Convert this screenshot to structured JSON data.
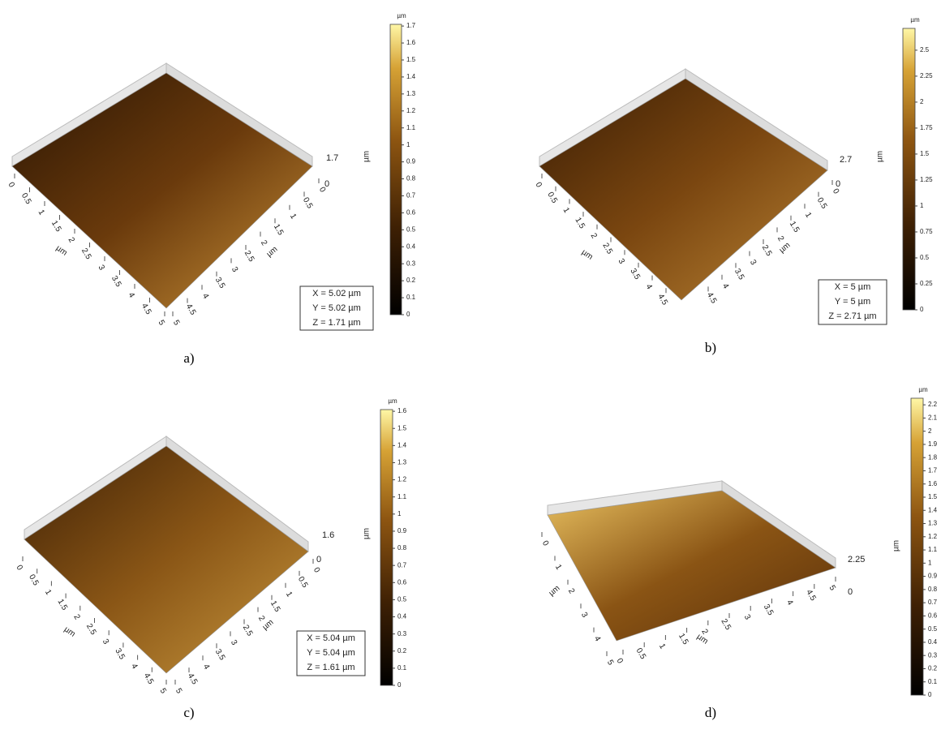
{
  "chart_data": [
    {
      "type": "surface",
      "caption": "a)",
      "xlabel": "µm",
      "ylabel": "µm",
      "zlabel": "µm",
      "xlim": [
        0,
        5
      ],
      "xticks": [
        0,
        0.5,
        1,
        1.5,
        2,
        2.5,
        3,
        3.5,
        4,
        4.5,
        5
      ],
      "ylim": [
        0,
        5
      ],
      "yticks": [
        0,
        0.5,
        1,
        1.5,
        2,
        2.5,
        3,
        3.5,
        4,
        4.5,
        5
      ],
      "zticks": [
        1.7,
        0
      ],
      "info": [
        "X = 5.02 µm",
        "Y = 5.02 µm",
        "Z = 1.71 µm"
      ],
      "colorbar": {
        "label": "µm",
        "lim": [
          0,
          1.71
        ],
        "ticks": [
          0,
          0.1,
          0.2,
          0.3,
          0.4,
          0.5,
          0.6,
          0.7,
          0.8,
          0.9,
          1,
          1.1,
          1.2,
          1.3,
          1.4,
          1.5,
          1.6,
          1.7
        ]
      }
    },
    {
      "type": "surface",
      "caption": "b)",
      "xlabel": "µm",
      "ylabel": "µm",
      "zlabel": "µm",
      "xlim": [
        0,
        5
      ],
      "xticks": [
        0,
        0.5,
        1,
        1.5,
        2,
        2.5,
        3,
        3.5,
        4,
        4.5
      ],
      "ylim": [
        0,
        5
      ],
      "yticks": [
        0,
        0.5,
        1,
        1.5,
        2,
        2.5,
        3,
        3.5,
        4,
        4.5
      ],
      "zticks": [
        2.7,
        0
      ],
      "info": [
        "X = 5 µm",
        "Y = 5 µm",
        "Z = 2.71 µm"
      ],
      "colorbar": {
        "label": "µm",
        "lim": [
          0,
          2.71
        ],
        "ticks": [
          0,
          0.25,
          0.5,
          0.75,
          1,
          1.25,
          1.5,
          1.75,
          2,
          2.25,
          2.5
        ]
      }
    },
    {
      "type": "surface",
      "caption": "c)",
      "xlabel": "µm",
      "ylabel": "µm",
      "zlabel": "µm",
      "xlim": [
        0,
        5
      ],
      "xticks": [
        0,
        0.5,
        1,
        1.5,
        2,
        2.5,
        3,
        3.5,
        4,
        4.5,
        5
      ],
      "ylim": [
        0,
        5
      ],
      "yticks": [
        0,
        0.5,
        1,
        1.5,
        2,
        2.5,
        3,
        3.5,
        4,
        4.5,
        5
      ],
      "zticks": [
        1.6,
        0
      ],
      "info": [
        "X = 5.04 µm",
        "Y = 5.04 µm",
        "Z = 1.61 µm"
      ],
      "colorbar": {
        "label": "µm",
        "lim": [
          0,
          1.61
        ],
        "ticks": [
          0,
          0.1,
          0.2,
          0.3,
          0.4,
          0.5,
          0.6,
          0.7,
          0.8,
          0.9,
          1,
          1.1,
          1.2,
          1.3,
          1.4,
          1.5,
          1.6
        ]
      }
    },
    {
      "type": "surface",
      "caption": "d)",
      "xlabel": "µm",
      "ylabel": "µm",
      "zlabel": "µm",
      "xlim": [
        0,
        5
      ],
      "xticks": [
        0,
        0.5,
        1,
        1.5,
        2,
        2.5,
        3,
        3.5,
        4,
        4.5,
        5
      ],
      "ylim": [
        0,
        5
      ],
      "yticks": [
        0,
        1,
        2,
        3,
        4,
        5
      ],
      "zticks": [
        2.25,
        0
      ],
      "colorbar": {
        "label": "µm",
        "lim": [
          0,
          2.25
        ],
        "ticks": [
          0,
          0.1,
          0.2,
          0.3,
          0.4,
          0.5,
          0.6,
          0.7,
          0.8,
          0.9,
          1,
          1.1,
          1.2,
          1.3,
          1.4,
          1.5,
          1.6,
          1.7,
          1.8,
          1.9,
          2,
          2.1,
          2.2
        ]
      }
    }
  ]
}
